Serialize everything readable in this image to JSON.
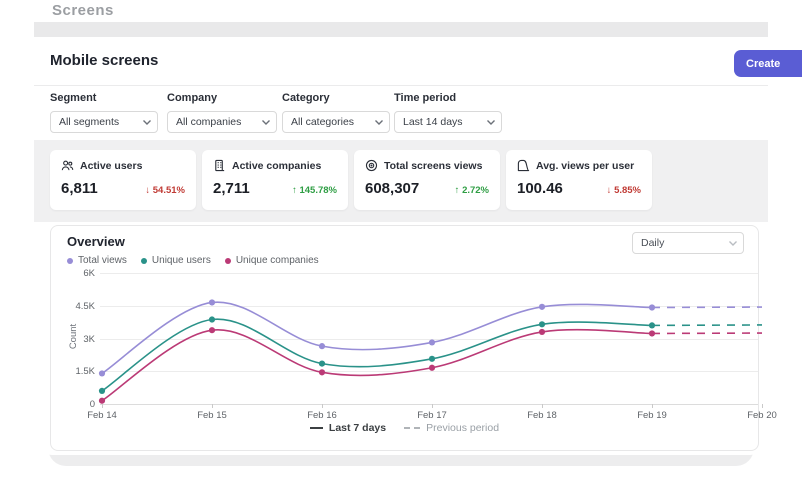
{
  "window": {
    "clipped_top_text": "Screens"
  },
  "header": {
    "title": "Mobile screens",
    "create_button_label": "Create"
  },
  "filters": {
    "segment": {
      "label": "Segment",
      "value": "All segments"
    },
    "company": {
      "label": "Company",
      "value": "All companies"
    },
    "category": {
      "label": "Category",
      "value": "All categories"
    },
    "time_period": {
      "label": "Time period",
      "value": "Last 14 days"
    }
  },
  "stats": [
    {
      "label": "Active users",
      "value": "6,811",
      "arrow": "↓",
      "change": "54.51%",
      "change_color": "#c03a34",
      "icon": "users-icon"
    },
    {
      "label": "Active companies",
      "value": "2,711",
      "arrow": "↑",
      "change": "145.78%",
      "change_color": "#2f9e44",
      "icon": "building-icon"
    },
    {
      "label": "Total screens views",
      "value": "608,307",
      "arrow": "↑",
      "change": "2.72%",
      "change_color": "#2f9e44",
      "icon": "eye-icon"
    },
    {
      "label": "Avg. views per user",
      "value": "100.46",
      "arrow": "↓",
      "change": "5.85%",
      "change_color": "#c03a34",
      "icon": "bell-curve-icon"
    }
  ],
  "overview": {
    "title": "Overview",
    "granularity": "Daily",
    "bottom_legend": [
      {
        "label": "Last 7 days",
        "style": "solid"
      },
      {
        "label": "Previous period",
        "style": "dashed"
      }
    ]
  },
  "chart_data": {
    "type": "line",
    "x": [
      "Feb 14",
      "Feb 15",
      "Feb 16",
      "Feb 17",
      "Feb 18",
      "Feb 19",
      "Feb 20"
    ],
    "xlabel": "",
    "ylabel": "Count",
    "ylim": [
      0,
      6000
    ],
    "y_ticks": [
      {
        "value": 0,
        "label": "0"
      },
      {
        "value": 1500,
        "label": "1.5K"
      },
      {
        "value": 3000,
        "label": "3K"
      },
      {
        "value": 4500,
        "label": "4.5K"
      },
      {
        "value": 6000,
        "label": "6K"
      }
    ],
    "grid": true,
    "legend_position": "top-left",
    "solid_points": 6,
    "series": [
      {
        "name": "Total views",
        "color": "#978dd6",
        "values": [
          1400,
          4650,
          2650,
          2820,
          4450,
          4420,
          4440
        ]
      },
      {
        "name": "Unique users",
        "color": "#2a9289",
        "values": [
          600,
          3870,
          1850,
          2070,
          3650,
          3600,
          3620
        ]
      },
      {
        "name": "Unique companies",
        "color": "#bb3a76",
        "values": [
          150,
          3380,
          1450,
          1660,
          3300,
          3230,
          3250
        ]
      }
    ]
  }
}
